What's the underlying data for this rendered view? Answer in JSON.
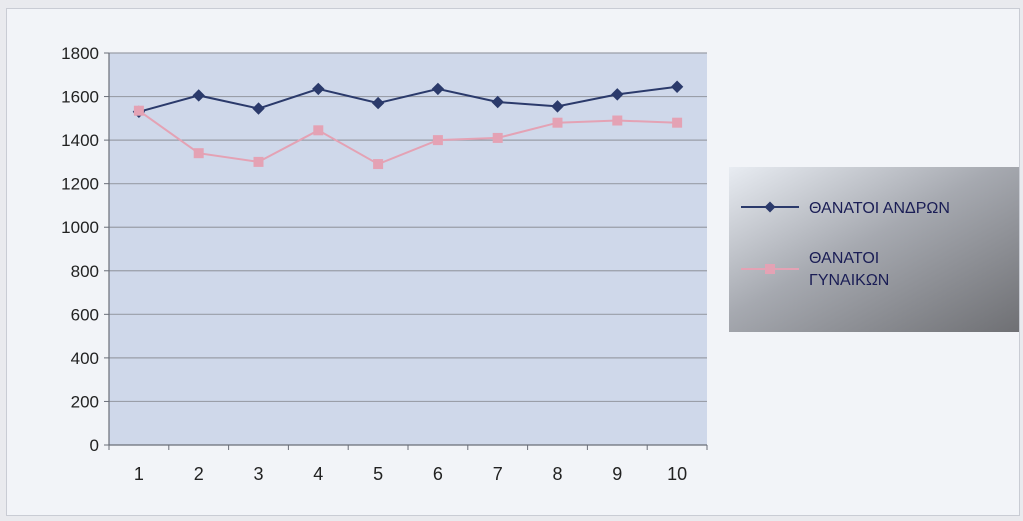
{
  "chart_data": {
    "type": "line",
    "title": "",
    "xlabel": "",
    "ylabel": "",
    "x": [
      1,
      2,
      3,
      4,
      5,
      6,
      7,
      8,
      9,
      10
    ],
    "x_tick_labels": [
      "1",
      "2",
      "3",
      "4",
      "5",
      "6",
      "7",
      "8",
      "9",
      "10"
    ],
    "ylim": [
      0,
      1800
    ],
    "y_ticks": [
      0,
      200,
      400,
      600,
      800,
      1000,
      1200,
      1400,
      1600,
      1800
    ],
    "y_tick_labels": [
      "0",
      "200",
      "400",
      "600",
      "800",
      "1000",
      "1200",
      "1400",
      "1600",
      "1800"
    ],
    "grid": "horizontal",
    "legend_position": "right",
    "series": [
      {
        "name": "ΘΑΝΑΤΟΙ ΑΝΔΡΩΝ",
        "values": [
          1530,
          1605,
          1545,
          1635,
          1570,
          1635,
          1575,
          1555,
          1610,
          1645
        ],
        "color": "#2b3a6b",
        "marker": "diamond"
      },
      {
        "name": "ΘΑΝΑΤΟΙ ΓΥΝΑΙΚΩΝ",
        "values": [
          1535,
          1340,
          1300,
          1445,
          1290,
          1400,
          1410,
          1480,
          1490,
          1480
        ],
        "color": "#e4a2b4",
        "marker": "square"
      }
    ]
  },
  "colors": {
    "plot_background": "#cfd8ea",
    "gridline": "#9a9ea8",
    "axis": "#6a6e78",
    "tick_text": "#222222",
    "legend_bg": "#6d6e72",
    "legend_text": "#1a1d55"
  }
}
